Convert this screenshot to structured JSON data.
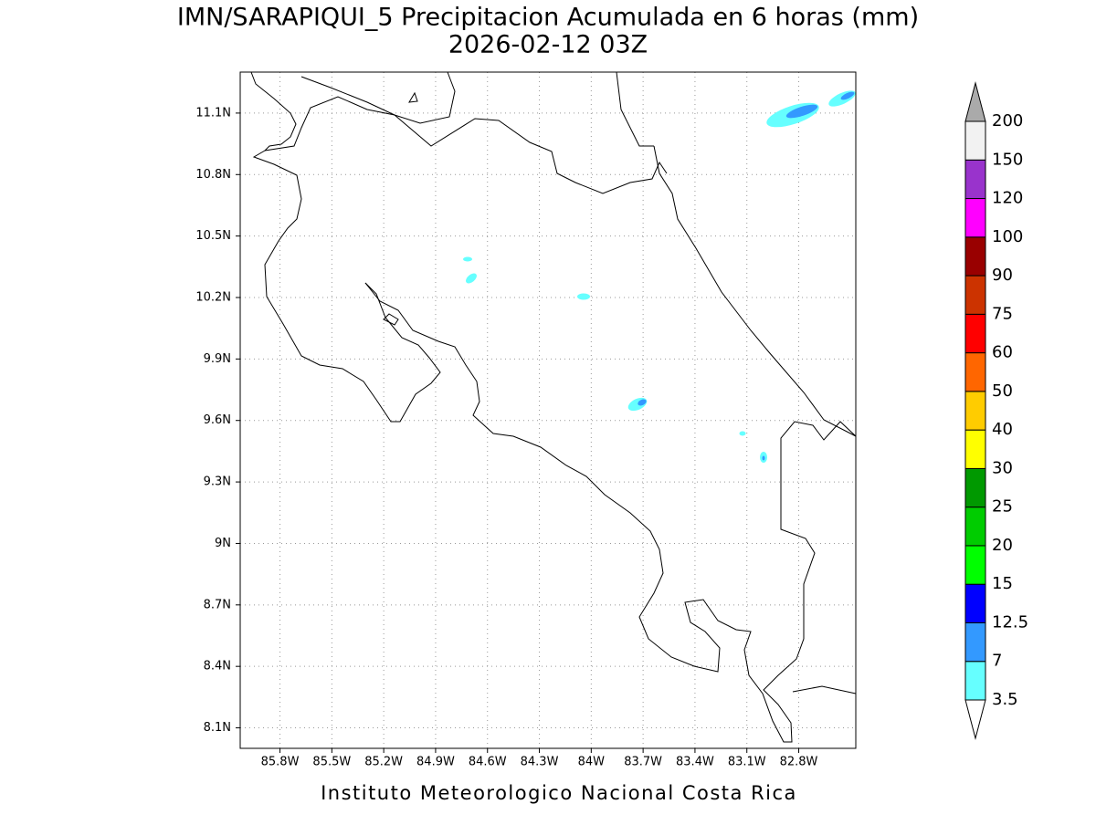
{
  "chart_data": {
    "type": "map",
    "title": "IMN/SARAPIQUI_5 Precipitacion Acumulada en 6 horas (mm)",
    "subtitle": "2026-02-12 03Z",
    "footer": "Instituto Meteorologico Nacional Costa Rica",
    "xlim": [
      -86.03,
      -82.47
    ],
    "ylim": [
      8.0,
      11.3
    ],
    "xticks": [
      {
        "value": -85.8,
        "label": "85.8W"
      },
      {
        "value": -85.5,
        "label": "85.5W"
      },
      {
        "value": -85.2,
        "label": "85.2W"
      },
      {
        "value": -84.9,
        "label": "84.9W"
      },
      {
        "value": -84.6,
        "label": "84.6W"
      },
      {
        "value": -84.3,
        "label": "84.3W"
      },
      {
        "value": -84.0,
        "label": "84W"
      },
      {
        "value": -83.7,
        "label": "83.7W"
      },
      {
        "value": -83.4,
        "label": "83.4W"
      },
      {
        "value": -83.1,
        "label": "83.1W"
      },
      {
        "value": -82.8,
        "label": "82.8W"
      }
    ],
    "yticks": [
      {
        "value": 8.1,
        "label": "8.1N"
      },
      {
        "value": 8.4,
        "label": "8.4N"
      },
      {
        "value": 8.7,
        "label": "8.7N"
      },
      {
        "value": 9.0,
        "label": "9N"
      },
      {
        "value": 9.3,
        "label": "9.3N"
      },
      {
        "value": 9.6,
        "label": "9.6N"
      },
      {
        "value": 9.9,
        "label": "9.9N"
      },
      {
        "value": 10.2,
        "label": "10.2N"
      },
      {
        "value": 10.5,
        "label": "10.5N"
      },
      {
        "value": 10.8,
        "label": "10.8N"
      },
      {
        "value": 11.1,
        "label": "11.1N"
      }
    ],
    "grid": true,
    "colorbar": {
      "levels": [
        3.5,
        7,
        12.5,
        15,
        20,
        25,
        30,
        40,
        50,
        60,
        75,
        90,
        100,
        120,
        150,
        200
      ],
      "colors": [
        "#ffffff",
        "#66ffff",
        "#3399ff",
        "#0000ff",
        "#00ff00",
        "#00cc00",
        "#009900",
        "#ffff00",
        "#ffcc00",
        "#ff6600",
        "#ff0000",
        "#cc3300",
        "#990000",
        "#ff00ff",
        "#9933cc",
        "#f2f2f2",
        "#aaaaaa"
      ]
    }
  }
}
